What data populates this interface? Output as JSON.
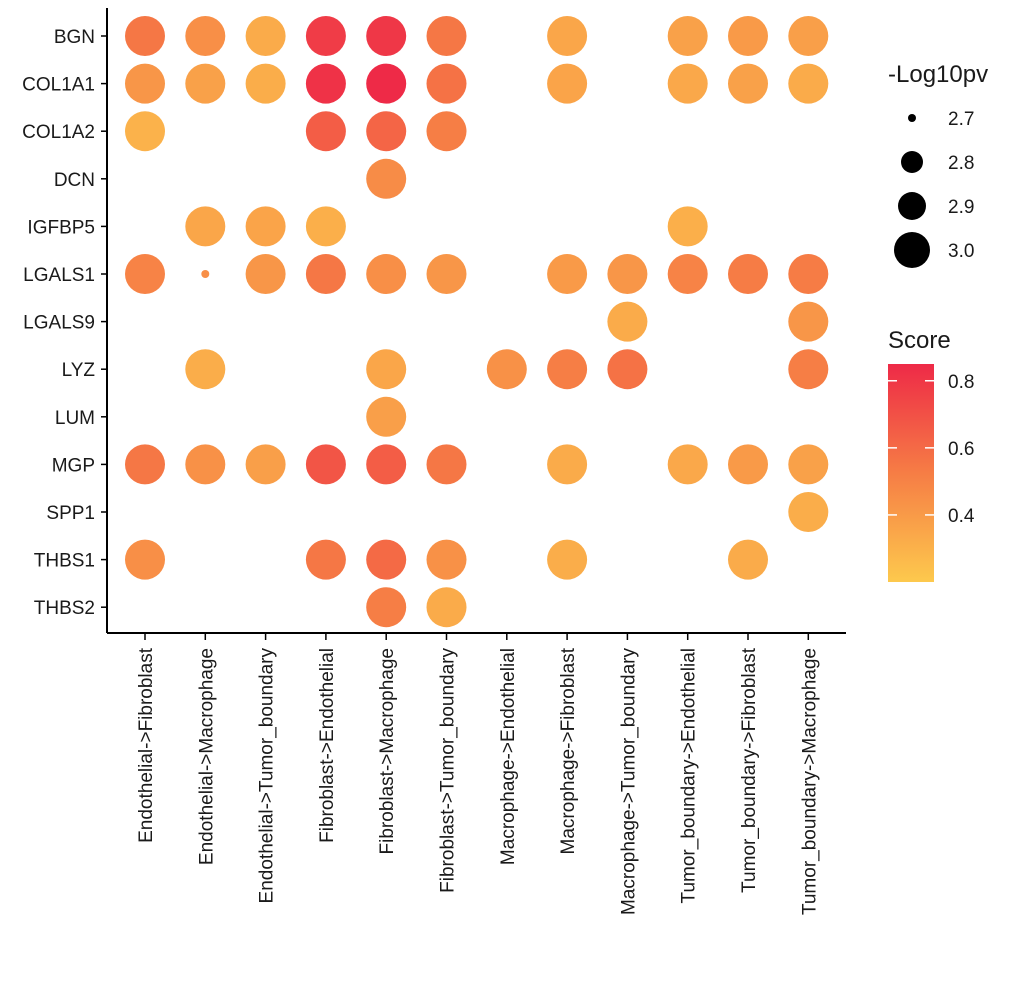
{
  "chart_data": {
    "type": "scatter",
    "subtype": "dot-matrix",
    "title": "",
    "xlabel": "",
    "ylabel": "",
    "x_categories": [
      "Endothelial->Fibroblast",
      "Endothelial->Macrophage",
      "Endothelial->Tumor_boundary",
      "Fibroblast->Endothelial",
      "Fibroblast->Macrophage",
      "Fibroblast->Tumor_boundary",
      "Macrophage->Endothelial",
      "Macrophage->Fibroblast",
      "Macrophage->Tumor_boundary",
      "Tumor_boundary->Endothelial",
      "Tumor_boundary->Fibroblast",
      "Tumor_boundary->Macrophage"
    ],
    "y_categories": [
      "BGN",
      "COL1A1",
      "COL1A2",
      "DCN",
      "IGFBP5",
      "LGALS1",
      "LGALS9",
      "LYZ",
      "LUM",
      "MGP",
      "SPP1",
      "THBS1",
      "THBS2"
    ],
    "points": [
      {
        "gene": "BGN",
        "pair": 0,
        "score": 0.55,
        "log10pv": 3.0
      },
      {
        "gene": "BGN",
        "pair": 1,
        "score": 0.45,
        "log10pv": 3.0
      },
      {
        "gene": "BGN",
        "pair": 2,
        "score": 0.33,
        "log10pv": 3.0
      },
      {
        "gene": "BGN",
        "pair": 3,
        "score": 0.78,
        "log10pv": 3.0
      },
      {
        "gene": "BGN",
        "pair": 4,
        "score": 0.8,
        "log10pv": 3.0
      },
      {
        "gene": "BGN",
        "pair": 5,
        "score": 0.55,
        "log10pv": 3.0
      },
      {
        "gene": "BGN",
        "pair": 7,
        "score": 0.35,
        "log10pv": 3.0
      },
      {
        "gene": "BGN",
        "pair": 9,
        "score": 0.37,
        "log10pv": 3.0
      },
      {
        "gene": "BGN",
        "pair": 10,
        "score": 0.4,
        "log10pv": 3.0
      },
      {
        "gene": "BGN",
        "pair": 11,
        "score": 0.38,
        "log10pv": 3.0
      },
      {
        "gene": "COL1A1",
        "pair": 0,
        "score": 0.42,
        "log10pv": 3.0
      },
      {
        "gene": "COL1A1",
        "pair": 1,
        "score": 0.37,
        "log10pv": 3.0
      },
      {
        "gene": "COL1A1",
        "pair": 2,
        "score": 0.32,
        "log10pv": 3.0
      },
      {
        "gene": "COL1A1",
        "pair": 3,
        "score": 0.82,
        "log10pv": 3.0
      },
      {
        "gene": "COL1A1",
        "pair": 4,
        "score": 0.85,
        "log10pv": 3.0
      },
      {
        "gene": "COL1A1",
        "pair": 5,
        "score": 0.57,
        "log10pv": 3.0
      },
      {
        "gene": "COL1A1",
        "pair": 7,
        "score": 0.36,
        "log10pv": 3.0
      },
      {
        "gene": "COL1A1",
        "pair": 9,
        "score": 0.34,
        "log10pv": 3.0
      },
      {
        "gene": "COL1A1",
        "pair": 10,
        "score": 0.37,
        "log10pv": 3.0
      },
      {
        "gene": "COL1A1",
        "pair": 11,
        "score": 0.33,
        "log10pv": 3.0
      },
      {
        "gene": "COL1A2",
        "pair": 0,
        "score": 0.3,
        "log10pv": 3.0
      },
      {
        "gene": "COL1A2",
        "pair": 3,
        "score": 0.65,
        "log10pv": 3.0
      },
      {
        "gene": "COL1A2",
        "pair": 4,
        "score": 0.62,
        "log10pv": 3.0
      },
      {
        "gene": "COL1A2",
        "pair": 5,
        "score": 0.52,
        "log10pv": 3.0
      },
      {
        "gene": "DCN",
        "pair": 4,
        "score": 0.46,
        "log10pv": 3.0
      },
      {
        "gene": "IGFBP5",
        "pair": 1,
        "score": 0.35,
        "log10pv": 3.0
      },
      {
        "gene": "IGFBP5",
        "pair": 2,
        "score": 0.36,
        "log10pv": 3.0
      },
      {
        "gene": "IGFBP5",
        "pair": 3,
        "score": 0.31,
        "log10pv": 3.0
      },
      {
        "gene": "IGFBP5",
        "pair": 9,
        "score": 0.31,
        "log10pv": 3.0
      },
      {
        "gene": "LGALS1",
        "pair": 0,
        "score": 0.5,
        "log10pv": 3.0
      },
      {
        "gene": "LGALS1",
        "pair": 1,
        "score": 0.45,
        "log10pv": 2.68
      },
      {
        "gene": "LGALS1",
        "pair": 2,
        "score": 0.42,
        "log10pv": 3.0
      },
      {
        "gene": "LGALS1",
        "pair": 3,
        "score": 0.55,
        "log10pv": 3.0
      },
      {
        "gene": "LGALS1",
        "pair": 4,
        "score": 0.45,
        "log10pv": 3.0
      },
      {
        "gene": "LGALS1",
        "pair": 5,
        "score": 0.42,
        "log10pv": 3.0
      },
      {
        "gene": "LGALS1",
        "pair": 7,
        "score": 0.4,
        "log10pv": 3.0
      },
      {
        "gene": "LGALS1",
        "pair": 8,
        "score": 0.42,
        "log10pv": 3.0
      },
      {
        "gene": "LGALS1",
        "pair": 9,
        "score": 0.5,
        "log10pv": 3.0
      },
      {
        "gene": "LGALS1",
        "pair": 10,
        "score": 0.53,
        "log10pv": 3.0
      },
      {
        "gene": "LGALS1",
        "pair": 11,
        "score": 0.53,
        "log10pv": 3.0
      },
      {
        "gene": "LGALS9",
        "pair": 8,
        "score": 0.33,
        "log10pv": 3.0
      },
      {
        "gene": "LGALS9",
        "pair": 11,
        "score": 0.42,
        "log10pv": 3.0
      },
      {
        "gene": "LYZ",
        "pair": 1,
        "score": 0.32,
        "log10pv": 3.0
      },
      {
        "gene": "LYZ",
        "pair": 4,
        "score": 0.35,
        "log10pv": 3.0
      },
      {
        "gene": "LYZ",
        "pair": 6,
        "score": 0.44,
        "log10pv": 3.0
      },
      {
        "gene": "LYZ",
        "pair": 7,
        "score": 0.52,
        "log10pv": 3.0
      },
      {
        "gene": "LYZ",
        "pair": 8,
        "score": 0.57,
        "log10pv": 3.0
      },
      {
        "gene": "LYZ",
        "pair": 11,
        "score": 0.52,
        "log10pv": 3.0
      },
      {
        "gene": "LUM",
        "pair": 4,
        "score": 0.38,
        "log10pv": 3.0
      },
      {
        "gene": "MGP",
        "pair": 0,
        "score": 0.55,
        "log10pv": 3.0
      },
      {
        "gene": "MGP",
        "pair": 1,
        "score": 0.44,
        "log10pv": 3.0
      },
      {
        "gene": "MGP",
        "pair": 2,
        "score": 0.38,
        "log10pv": 3.0
      },
      {
        "gene": "MGP",
        "pair": 3,
        "score": 0.68,
        "log10pv": 3.0
      },
      {
        "gene": "MGP",
        "pair": 4,
        "score": 0.65,
        "log10pv": 3.0
      },
      {
        "gene": "MGP",
        "pair": 5,
        "score": 0.55,
        "log10pv": 3.0
      },
      {
        "gene": "MGP",
        "pair": 7,
        "score": 0.33,
        "log10pv": 3.0
      },
      {
        "gene": "MGP",
        "pair": 9,
        "score": 0.34,
        "log10pv": 3.0
      },
      {
        "gene": "MGP",
        "pair": 10,
        "score": 0.4,
        "log10pv": 3.0
      },
      {
        "gene": "MGP",
        "pair": 11,
        "score": 0.37,
        "log10pv": 3.0
      },
      {
        "gene": "SPP1",
        "pair": 11,
        "score": 0.32,
        "log10pv": 3.0
      },
      {
        "gene": "THBS1",
        "pair": 0,
        "score": 0.45,
        "log10pv": 3.0
      },
      {
        "gene": "THBS1",
        "pair": 3,
        "score": 0.55,
        "log10pv": 3.0
      },
      {
        "gene": "THBS1",
        "pair": 4,
        "score": 0.6,
        "log10pv": 3.0
      },
      {
        "gene": "THBS1",
        "pair": 5,
        "score": 0.44,
        "log10pv": 3.0
      },
      {
        "gene": "THBS1",
        "pair": 7,
        "score": 0.32,
        "log10pv": 3.0
      },
      {
        "gene": "THBS1",
        "pair": 10,
        "score": 0.33,
        "log10pv": 3.0
      },
      {
        "gene": "THBS2",
        "pair": 4,
        "score": 0.52,
        "log10pv": 3.0
      },
      {
        "gene": "THBS2",
        "pair": 5,
        "score": 0.33,
        "log10pv": 3.0
      }
    ],
    "size_legend": {
      "title": "-Log10pv",
      "values": [
        2.7,
        2.8,
        2.9,
        3.0
      ],
      "labels": [
        "2.7",
        "2.8",
        "2.9",
        "3.0"
      ],
      "placement": "right"
    },
    "color_legend": {
      "title": "Score",
      "range": [
        0.2,
        0.85
      ],
      "ticks": [
        0.4,
        0.6,
        0.8
      ],
      "tick_labels": [
        "0.4",
        "0.6",
        "0.8"
      ],
      "low_color": "#FDC94D",
      "mid_color": "#F67D45",
      "high_color": "#EE2A47",
      "placement": "right"
    },
    "grid": false
  }
}
